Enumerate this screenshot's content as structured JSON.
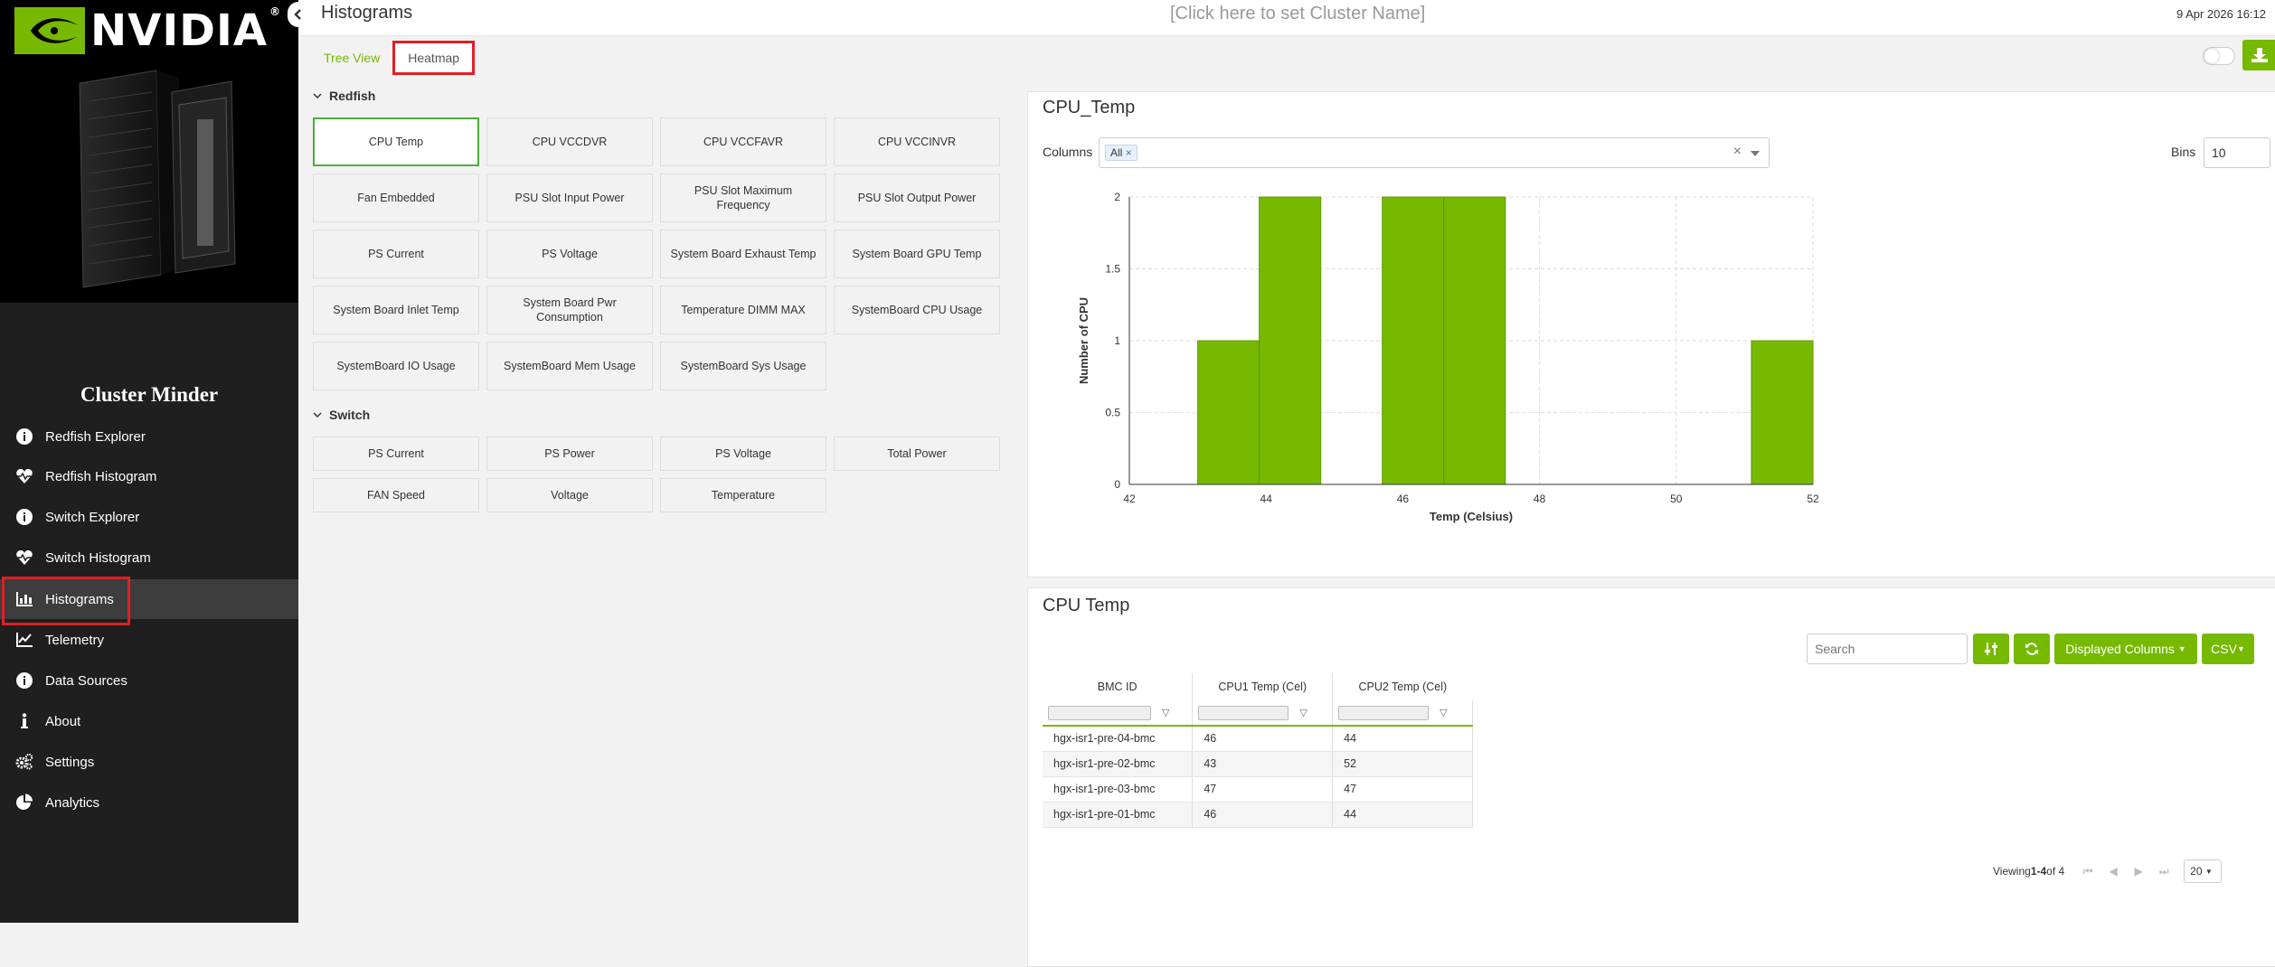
{
  "sidebar": {
    "logo_text": "NVIDIA",
    "brand": "Cluster Minder",
    "items": [
      {
        "label": "Redfish Explorer",
        "icon": "info-circle-icon"
      },
      {
        "label": "Redfish Histogram",
        "icon": "heart-pulse-icon"
      },
      {
        "label": "Switch Explorer",
        "icon": "info-circle-icon"
      },
      {
        "label": "Switch Histogram",
        "icon": "heart-pulse-icon"
      },
      {
        "label": "Histograms",
        "icon": "bar-chart-icon",
        "active": true
      },
      {
        "label": "Telemetry",
        "icon": "line-chart-icon"
      },
      {
        "label": "Data Sources",
        "icon": "info-circle-icon"
      },
      {
        "label": "About",
        "icon": "info-icon"
      },
      {
        "label": "Settings",
        "icon": "gears-icon"
      },
      {
        "label": "Analytics",
        "icon": "pie-chart-icon"
      }
    ]
  },
  "header": {
    "title": "Histograms",
    "cluster_name": "[Click here to set Cluster Name]",
    "date": "9 Apr 2026 16:12"
  },
  "tabs": [
    {
      "label": "Tree View",
      "selected": false
    },
    {
      "label": "Heatmap",
      "selected": true
    }
  ],
  "sections": {
    "redfish": {
      "title": "Redfish",
      "buttons": [
        "CPU Temp",
        "CPU VCCDVR",
        "CPU VCCFAVR",
        "CPU VCCINVR",
        "Fan Embedded",
        "PSU Slot Input Power",
        "PSU Slot Maximum Frequency",
        "PSU Slot Output Power",
        "PS Current",
        "PS Voltage",
        "System Board Exhaust Temp",
        "System Board GPU Temp",
        "System Board Inlet Temp",
        "System Board Pwr Consumption",
        "Temperature DIMM MAX",
        "SystemBoard CPU Usage",
        "SystemBoard IO Usage",
        "SystemBoard Mem Usage",
        "SystemBoard Sys Usage"
      ]
    },
    "switch": {
      "title": "Switch",
      "buttons": [
        "PS Current",
        "PS Power",
        "PS Voltage",
        "Total Power",
        "FAN Speed",
        "Voltage",
        "Temperature"
      ]
    }
  },
  "chart_panel": {
    "title": "CPU_Temp",
    "columns_label": "Columns",
    "columns_value": "All",
    "clear_symbol": "×",
    "bins_label": "Bins",
    "bins_value": "10"
  },
  "chart_data": {
    "type": "bar",
    "xlabel": "Temp (Celsius)",
    "ylabel": "Number of CPU",
    "xlim": [
      42,
      52
    ],
    "ylim": [
      0,
      2
    ],
    "x_ticks": [
      42,
      44,
      46,
      48,
      50,
      52
    ],
    "y_ticks": [
      0,
      0.5,
      1,
      1.5,
      2
    ],
    "grid": true,
    "bins": [
      {
        "x0": 43.0,
        "x1": 43.9,
        "count": 1
      },
      {
        "x0": 43.9,
        "x1": 44.8,
        "count": 2
      },
      {
        "x0": 45.7,
        "x1": 46.6,
        "count": 2
      },
      {
        "x0": 46.6,
        "x1": 47.5,
        "count": 2
      },
      {
        "x0": 51.1,
        "x1": 52.0,
        "count": 1
      }
    ],
    "color": "#76b900"
  },
  "table_panel": {
    "title": "CPU Temp",
    "search_placeholder": "Search",
    "displayed_columns_label": "Displayed Columns",
    "csv_label": "CSV",
    "columns": [
      "BMC ID",
      "CPU1 Temp (Cel)",
      "CPU2 Temp (Cel)"
    ],
    "rows": [
      [
        "hgx-isr1-pre-04-bmc",
        "46",
        "44"
      ],
      [
        "hgx-isr1-pre-02-bmc",
        "43",
        "52"
      ],
      [
        "hgx-isr1-pre-03-bmc",
        "47",
        "47"
      ],
      [
        "hgx-isr1-pre-01-bmc",
        "46",
        "44"
      ]
    ],
    "pager_prefix": "Viewing ",
    "pager_range": "1-4",
    "pager_suffix": " of 4",
    "page_size": "20"
  },
  "colors": {
    "accent": "#76b900",
    "highlight": "#e01f26"
  }
}
